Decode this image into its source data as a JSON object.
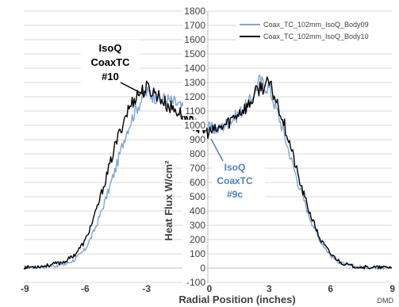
{
  "chart_data": {
    "type": "line",
    "title": "",
    "xlabel": "Radial Position (inches)",
    "ylabel": "Heat Flux  W/cm²",
    "xlim": [
      -9,
      9
    ],
    "ylim": [
      -100,
      1800
    ],
    "x_ticks": [
      "-9",
      "-6",
      "-3",
      "0",
      "3",
      "6",
      "9"
    ],
    "y_ticks": [
      "-100",
      "0",
      "100",
      "200",
      "300",
      "400",
      "500",
      "600",
      "700",
      "800",
      "900",
      "1000",
      "1100",
      "1200",
      "1300",
      "1400",
      "1500",
      "1600",
      "1700",
      "1800"
    ],
    "grid": true,
    "legend_position": "top-right",
    "series": [
      {
        "name": "Coax_TC_102mm_IsoQ_Body09",
        "color": "#7fa7d3",
        "x": [
          -9,
          -8,
          -7,
          -6.5,
          -6,
          -5.5,
          -5,
          -4.5,
          -4,
          -3.5,
          -3,
          -2.5,
          -2,
          -1.5,
          -1,
          -0.5,
          0,
          0.5,
          1,
          1.5,
          2,
          2.5,
          3,
          3.5,
          4,
          4.5,
          5,
          5.5,
          6,
          6.5,
          7,
          7.5,
          8,
          9
        ],
        "y": [
          5,
          10,
          25,
          60,
          130,
          280,
          480,
          700,
          950,
          1120,
          1230,
          1200,
          1180,
          1150,
          1080,
          1000,
          980,
          970,
          1020,
          1080,
          1150,
          1310,
          1260,
          1050,
          800,
          560,
          350,
          190,
          90,
          35,
          15,
          8,
          5,
          5
        ]
      },
      {
        "name": "Coax_TC_102mm_IsoQ_Body10",
        "color": "#000000",
        "x": [
          -9,
          -8,
          -7,
          -6.5,
          -6,
          -5.5,
          -5,
          -4.5,
          -4,
          -3.5,
          -3,
          -2.5,
          -2,
          -1.5,
          -1,
          -0.5,
          0,
          0.5,
          1,
          1.5,
          2,
          2.5,
          3,
          3.5,
          4,
          4.5,
          5,
          5.5,
          6,
          6.5,
          7,
          7.5,
          8,
          9
        ],
        "y": [
          5,
          15,
          45,
          95,
          190,
          380,
          620,
          870,
          1080,
          1210,
          1260,
          1220,
          1140,
          1100,
          1050,
          980,
          950,
          970,
          1020,
          1090,
          1140,
          1260,
          1290,
          1120,
          880,
          600,
          380,
          200,
          100,
          40,
          15,
          8,
          5,
          5
        ]
      }
    ],
    "annotations": [
      {
        "lines": [
          "IsoQ",
          "CoaxTC",
          "#10"
        ],
        "color": "#000000"
      },
      {
        "lines": [
          "IsoQ",
          "CoaxTC",
          "#9c"
        ],
        "color": "#4f81bd"
      }
    ],
    "credit": "DMD"
  }
}
